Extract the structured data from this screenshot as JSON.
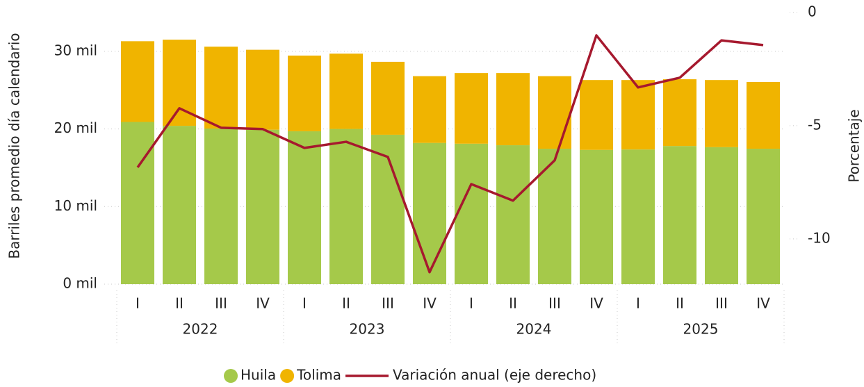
{
  "chart_data": {
    "type": "bar",
    "stacked": true,
    "y_label": "Barriles promedio día calendario",
    "y2_label": "Porcentaje",
    "categories": [
      "I",
      "II",
      "III",
      "IV",
      "I",
      "II",
      "III",
      "IV",
      "I",
      "II",
      "III",
      "IV",
      "I",
      "II",
      "III",
      "IV"
    ],
    "groups": [
      "2022",
      "2023",
      "2024",
      "2025"
    ],
    "series": [
      {
        "name": "Huila",
        "color": "#a5c94a",
        "type": "bar",
        "values": [
          20900,
          20400,
          20050,
          19900,
          19700,
          20000,
          19250,
          18200,
          18100,
          17900,
          17450,
          17300,
          17350,
          17800,
          17650,
          17450
        ]
      },
      {
        "name": "Tolima",
        "color": "#f0b400",
        "type": "bar",
        "values": [
          10400,
          11100,
          10550,
          10300,
          9750,
          9700,
          9400,
          8600,
          9100,
          9300,
          9350,
          9000,
          8950,
          8600,
          8650,
          8600
        ]
      },
      {
        "name": "Variación anual (eje derecho)",
        "color": "#a6192e",
        "type": "line",
        "axis": "y2",
        "values": [
          -6.84,
          -4.23,
          -5.09,
          -5.15,
          -5.98,
          -5.71,
          -6.38,
          -11.47,
          -7.58,
          -8.31,
          -6.53,
          -1.01,
          -3.31,
          -2.88,
          -1.23,
          -1.44
        ]
      }
    ],
    "ylim": [
      0,
      35000
    ],
    "yticks": [
      {
        "value": 0,
        "label": "0 mil"
      },
      {
        "value": 10000,
        "label": "10 mil"
      },
      {
        "value": 20000,
        "label": "20 mil"
      },
      {
        "value": 30000,
        "label": "30 mil"
      }
    ],
    "y2lim": [
      -12,
      0
    ],
    "y2ticks": [
      0,
      -5,
      -10
    ],
    "grid": true,
    "legend": "bottom"
  }
}
